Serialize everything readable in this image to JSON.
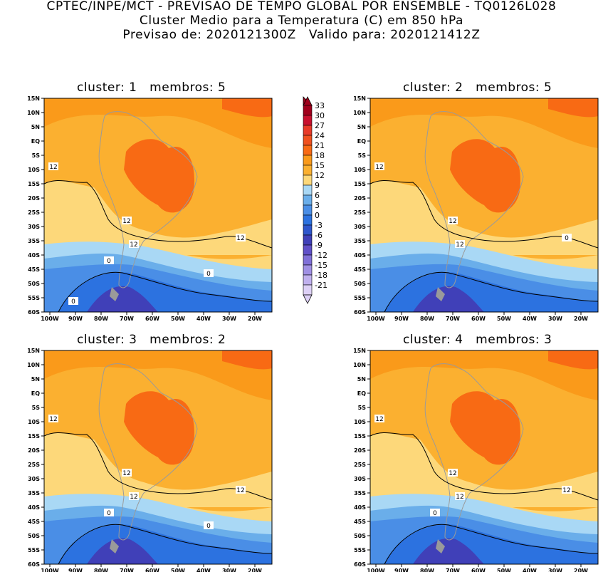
{
  "header": {
    "line1": "CPTEC/INPE/MCT - PREVISAO DE TEMPO GLOBAL POR ENSEMBLE - TQ0126L028",
    "line2": "Cluster Medio para a Temperatura (C) em 850 hPa",
    "line3": "Previsao de: 2020121300Z   Valido para: 2020121412Z"
  },
  "panels": [
    {
      "title": "cluster: 1   membros: 5",
      "contour_labels": [
        "12",
        "12",
        "12",
        "12",
        "0",
        "0",
        "0"
      ]
    },
    {
      "title": "cluster: 2   membros: 5",
      "contour_labels": [
        "12",
        "12",
        "12",
        "0"
      ]
    },
    {
      "title": "cluster: 3   membros: 2",
      "contour_labels": [
        "12",
        "12",
        "12",
        "12",
        "0",
        "0"
      ]
    },
    {
      "title": "cluster: 4   membros: 3",
      "contour_labels": [
        "12",
        "12",
        "12",
        "12",
        "0"
      ]
    }
  ],
  "lat_ticks": [
    "15N",
    "10N",
    "5N",
    "EQ",
    "5S",
    "10S",
    "15S",
    "20S",
    "25S",
    "30S",
    "35S",
    "40S",
    "45S",
    "50S",
    "55S",
    "60S"
  ],
  "lon_ticks": [
    "100W",
    "90W",
    "80W",
    "70W",
    "60W",
    "50W",
    "40W",
    "30W",
    "20W"
  ],
  "colorbar": {
    "labels": [
      "33",
      "30",
      "27",
      "24",
      "21",
      "18",
      "15",
      "12",
      "9",
      "6",
      "3",
      "0",
      "-3",
      "-6",
      "-9",
      "-12",
      "-15",
      "-18",
      "-21"
    ],
    "colors": [
      "#a0001c",
      "#c8102e",
      "#e83a28",
      "#f0501e",
      "#f86a14",
      "#fa9a1a",
      "#fbb030",
      "#fdd87a",
      "#a9d8f5",
      "#6aaeea",
      "#4a8ee6",
      "#2c72e0",
      "#2e56cc",
      "#4040b8",
      "#6050c8",
      "#8070d8",
      "#a090e4",
      "#c0b0ee",
      "#ddd0f6"
    ]
  },
  "legend_unit": "Temperatura (C)"
}
